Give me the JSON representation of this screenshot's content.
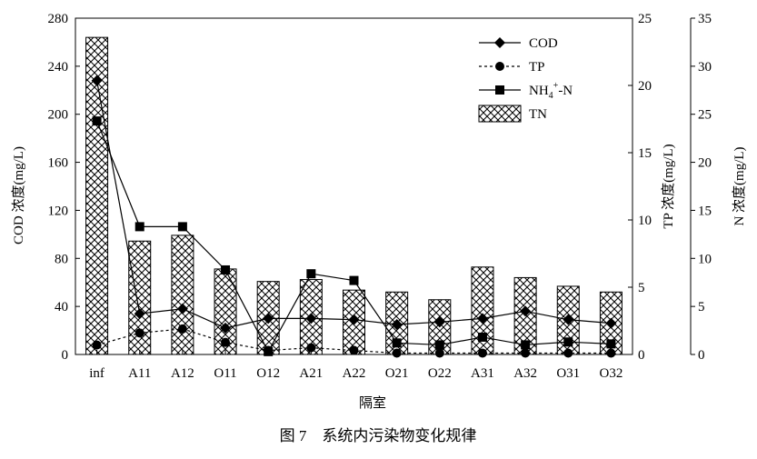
{
  "figure": {
    "caption": "图 7　系统内污染物变化规律"
  },
  "chart_data": {
    "type": "bar",
    "xlabel": "隔室",
    "categories": [
      "inf",
      "A11",
      "A12",
      "O11",
      "O12",
      "A21",
      "A22",
      "O21",
      "O22",
      "A31",
      "A32",
      "O31",
      "O32"
    ],
    "axes": {
      "left": {
        "label": "COD 浓度(mg/L)",
        "ylim": [
          0,
          280
        ],
        "ticks": [
          0,
          40,
          80,
          120,
          160,
          200,
          240,
          280
        ]
      },
      "right1": {
        "label": "TP 浓度(mg/L)",
        "ylim": [
          0,
          25
        ],
        "ticks": [
          0,
          5,
          10,
          15,
          20,
          25
        ]
      },
      "right2": {
        "label": "N 浓度(mg/L)",
        "ylim": [
          0,
          35
        ],
        "ticks": [
          0,
          5,
          10,
          15,
          20,
          25,
          30,
          35
        ]
      }
    },
    "legend": {
      "position": "top-right"
    },
    "series": [
      {
        "name": "COD",
        "kind": "line",
        "marker": "diamond",
        "line_style": "solid",
        "axis": "left",
        "values": [
          228,
          34,
          38,
          22,
          30,
          30,
          29,
          25,
          27,
          30,
          36,
          29,
          26
        ]
      },
      {
        "name": "TP",
        "kind": "line",
        "marker": "circle",
        "line_style": "dashed",
        "axis": "right1",
        "values": [
          0.7,
          1.6,
          1.9,
          0.9,
          0.3,
          0.5,
          0.3,
          0.1,
          0.1,
          0.1,
          0.1,
          0.1,
          0.1
        ]
      },
      {
        "name": "NH4+-N",
        "label_main": "NH",
        "label_sub": "4",
        "label_sup": "+",
        "label_tail": "-N",
        "kind": "line",
        "marker": "square",
        "line_style": "solid",
        "axis": "right2",
        "values": [
          24.3,
          13.3,
          13.3,
          8.8,
          0.3,
          8.4,
          7.7,
          1.2,
          1.0,
          1.8,
          1.0,
          1.3,
          1.1
        ]
      },
      {
        "name": "TN",
        "kind": "bar",
        "pattern": "crosshatch",
        "axis": "right2",
        "values": [
          33.0,
          11.8,
          12.4,
          8.9,
          7.6,
          7.8,
          6.7,
          6.5,
          5.7,
          9.1,
          8.0,
          7.1,
          6.5
        ]
      }
    ]
  }
}
